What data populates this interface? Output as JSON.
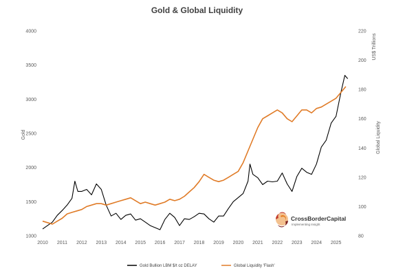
{
  "chart_data": {
    "type": "line",
    "title": "Gold & Global Liquidity",
    "left_axis": {
      "label": "Gold",
      "ylim": [
        1000,
        4000
      ],
      "ticks": [
        "1000",
        "1500",
        "2000",
        "2500",
        "3000",
        "3500",
        "4000"
      ]
    },
    "right_axis": {
      "label": "Global Liquidity",
      "unit_label": "US$ Trillions",
      "ylim": [
        80,
        220
      ],
      "ticks": [
        "80",
        "100",
        "120",
        "140",
        "160",
        "180",
        "200",
        "220"
      ]
    },
    "x_axis": {
      "xlim": [
        2010.0,
        2025.75
      ],
      "ticks": [
        "2010",
        "2011",
        "2012",
        "2013",
        "2014",
        "2015",
        "2016",
        "2017",
        "2018",
        "2019",
        "2020",
        "2021",
        "2022",
        "2023",
        "2024",
        "2025"
      ]
    },
    "grid": false,
    "legend_position": "bottom",
    "series": [
      {
        "name": "Gold Bullion LBM $/t oz DELAY",
        "axis": "left",
        "color": "#000000",
        "points": [
          [
            2010.0,
            1100
          ],
          [
            2010.25,
            1150
          ],
          [
            2010.5,
            1200
          ],
          [
            2010.75,
            1300
          ],
          [
            2011.0,
            1370
          ],
          [
            2011.25,
            1450
          ],
          [
            2011.5,
            1550
          ],
          [
            2011.65,
            1800
          ],
          [
            2011.8,
            1650
          ],
          [
            2012.0,
            1650
          ],
          [
            2012.25,
            1680
          ],
          [
            2012.5,
            1600
          ],
          [
            2012.75,
            1760
          ],
          [
            2013.0,
            1680
          ],
          [
            2013.25,
            1450
          ],
          [
            2013.5,
            1290
          ],
          [
            2013.75,
            1330
          ],
          [
            2014.0,
            1240
          ],
          [
            2014.25,
            1300
          ],
          [
            2014.5,
            1320
          ],
          [
            2014.75,
            1230
          ],
          [
            2015.0,
            1250
          ],
          [
            2015.25,
            1200
          ],
          [
            2015.5,
            1150
          ],
          [
            2015.75,
            1120
          ],
          [
            2016.0,
            1090
          ],
          [
            2016.25,
            1240
          ],
          [
            2016.5,
            1330
          ],
          [
            2016.75,
            1270
          ],
          [
            2017.0,
            1150
          ],
          [
            2017.25,
            1250
          ],
          [
            2017.5,
            1240
          ],
          [
            2017.75,
            1280
          ],
          [
            2018.0,
            1330
          ],
          [
            2018.25,
            1320
          ],
          [
            2018.5,
            1250
          ],
          [
            2018.75,
            1200
          ],
          [
            2019.0,
            1290
          ],
          [
            2019.25,
            1290
          ],
          [
            2019.5,
            1400
          ],
          [
            2019.75,
            1500
          ],
          [
            2020.0,
            1560
          ],
          [
            2020.25,
            1620
          ],
          [
            2020.5,
            1800
          ],
          [
            2020.6,
            2050
          ],
          [
            2020.75,
            1900
          ],
          [
            2021.0,
            1850
          ],
          [
            2021.25,
            1750
          ],
          [
            2021.5,
            1800
          ],
          [
            2021.75,
            1790
          ],
          [
            2022.0,
            1800
          ],
          [
            2022.25,
            1920
          ],
          [
            2022.5,
            1760
          ],
          [
            2022.75,
            1650
          ],
          [
            2023.0,
            1870
          ],
          [
            2023.25,
            1990
          ],
          [
            2023.5,
            1930
          ],
          [
            2023.75,
            1900
          ],
          [
            2024.0,
            2050
          ],
          [
            2024.25,
            2300
          ],
          [
            2024.5,
            2400
          ],
          [
            2024.75,
            2650
          ],
          [
            2025.0,
            2750
          ],
          [
            2025.25,
            3100
          ],
          [
            2025.45,
            3350
          ],
          [
            2025.6,
            3300
          ]
        ]
      },
      {
        "name": "Global Liquidity 'Flash'",
        "axis": "right",
        "color": "#E07B27",
        "points": [
          [
            2010.0,
            90
          ],
          [
            2010.25,
            89
          ],
          [
            2010.5,
            88
          ],
          [
            2010.75,
            90
          ],
          [
            2011.0,
            92
          ],
          [
            2011.25,
            95
          ],
          [
            2011.5,
            96
          ],
          [
            2011.75,
            97
          ],
          [
            2012.0,
            98
          ],
          [
            2012.25,
            100
          ],
          [
            2012.5,
            101
          ],
          [
            2012.75,
            102
          ],
          [
            2013.0,
            102
          ],
          [
            2013.25,
            101
          ],
          [
            2013.5,
            102
          ],
          [
            2013.75,
            103
          ],
          [
            2014.0,
            104
          ],
          [
            2014.25,
            105
          ],
          [
            2014.5,
            106
          ],
          [
            2014.75,
            104
          ],
          [
            2015.0,
            102
          ],
          [
            2015.25,
            103
          ],
          [
            2015.5,
            102
          ],
          [
            2015.75,
            101
          ],
          [
            2016.0,
            102
          ],
          [
            2016.25,
            103
          ],
          [
            2016.5,
            105
          ],
          [
            2016.75,
            104
          ],
          [
            2017.0,
            105
          ],
          [
            2017.25,
            107
          ],
          [
            2017.5,
            110
          ],
          [
            2017.75,
            113
          ],
          [
            2018.0,
            117
          ],
          [
            2018.25,
            122
          ],
          [
            2018.5,
            120
          ],
          [
            2018.75,
            118
          ],
          [
            2019.0,
            117
          ],
          [
            2019.25,
            118
          ],
          [
            2019.5,
            120
          ],
          [
            2019.75,
            122
          ],
          [
            2020.0,
            124
          ],
          [
            2020.25,
            130
          ],
          [
            2020.5,
            138
          ],
          [
            2020.75,
            146
          ],
          [
            2021.0,
            154
          ],
          [
            2021.25,
            160
          ],
          [
            2021.5,
            162
          ],
          [
            2021.75,
            164
          ],
          [
            2022.0,
            166
          ],
          [
            2022.25,
            164
          ],
          [
            2022.5,
            160
          ],
          [
            2022.75,
            158
          ],
          [
            2023.0,
            162
          ],
          [
            2023.25,
            166
          ],
          [
            2023.5,
            166
          ],
          [
            2023.75,
            164
          ],
          [
            2024.0,
            167
          ],
          [
            2024.25,
            168
          ],
          [
            2024.5,
            170
          ],
          [
            2024.75,
            172
          ],
          [
            2025.0,
            174
          ],
          [
            2025.25,
            178
          ],
          [
            2025.5,
            182
          ]
        ]
      }
    ],
    "logo": {
      "text": "CrossBorderCapital",
      "tagline": "Implementing Insight"
    }
  }
}
